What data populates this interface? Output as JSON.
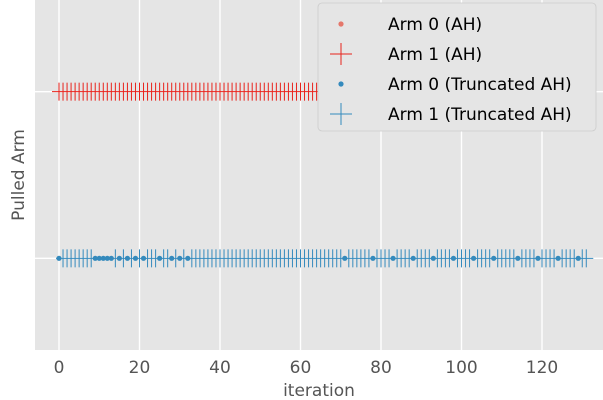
{
  "chart_data": {
    "type": "scatter",
    "title": "",
    "xlabel": "iteration",
    "ylabel": "Pulled Arm",
    "xlim": [
      -3.5,
      133.5
    ],
    "ylim": [
      -0.55,
      1.55
    ],
    "xticks": [
      0,
      20,
      40,
      60,
      80,
      100,
      120
    ],
    "xtick_labels": [
      "0",
      "20",
      "40",
      "60",
      "80",
      "100",
      "120"
    ],
    "grid": true,
    "legend_position": "top-right",
    "series": [
      {
        "name": "Arm 0 (AH)",
        "marker": "dot",
        "color": "#e5776b",
        "y": 1,
        "x": []
      },
      {
        "name": "Arm 1 (AH)",
        "marker": "plus",
        "color": "#e8221b",
        "y": 1,
        "x": [
          0,
          1,
          2,
          3,
          4,
          5,
          6,
          7,
          8,
          9,
          10,
          11,
          12,
          13,
          14,
          15,
          16,
          17,
          18,
          19,
          20,
          21,
          22,
          23,
          24,
          25,
          26,
          27,
          28,
          29,
          30,
          31,
          32,
          33,
          34,
          35,
          36,
          37,
          38,
          39,
          40,
          41,
          42,
          43,
          44,
          45,
          46,
          47,
          48,
          49,
          50,
          51,
          52,
          53,
          54,
          55,
          56,
          57,
          58,
          59,
          60,
          61,
          62,
          63,
          64,
          65,
          66,
          67,
          68,
          69,
          70,
          71,
          72,
          73,
          74,
          75,
          76,
          77,
          78,
          79,
          80,
          81,
          82,
          83,
          84,
          85,
          86,
          87,
          88,
          89,
          90,
          91,
          92,
          93,
          94,
          95,
          96,
          97,
          98,
          99,
          100,
          101,
          102,
          103,
          104,
          105,
          106,
          107,
          108
        ]
      },
      {
        "name": "Arm 0 (Truncated AH)",
        "marker": "dot",
        "color": "#348abd",
        "y": 0,
        "x": [
          0,
          9,
          10,
          11,
          12,
          13,
          15,
          17,
          19,
          21,
          25,
          28,
          30,
          32,
          71,
          78,
          83,
          88,
          93,
          98,
          103,
          108,
          114,
          119,
          124,
          129
        ]
      },
      {
        "name": "Arm 1 (Truncated AH)",
        "marker": "plus",
        "color": "#348abd",
        "y": 0,
        "x": [
          1,
          2,
          3,
          4,
          5,
          6,
          7,
          8,
          14,
          16,
          18,
          20,
          22,
          23,
          24,
          26,
          27,
          29,
          31,
          33,
          34,
          35,
          36,
          37,
          38,
          39,
          40,
          41,
          42,
          43,
          44,
          45,
          46,
          47,
          48,
          49,
          50,
          51,
          52,
          53,
          54,
          55,
          56,
          57,
          58,
          59,
          60,
          61,
          62,
          63,
          64,
          65,
          66,
          67,
          68,
          69,
          70,
          72,
          73,
          74,
          75,
          76,
          77,
          79,
          80,
          81,
          82,
          84,
          85,
          86,
          87,
          89,
          90,
          91,
          92,
          94,
          95,
          96,
          97,
          99,
          100,
          101,
          102,
          104,
          105,
          106,
          107,
          109,
          110,
          111,
          112,
          113,
          115,
          116,
          117,
          118,
          120,
          121,
          122,
          123,
          125,
          126,
          127,
          128,
          130,
          131
        ]
      }
    ]
  }
}
